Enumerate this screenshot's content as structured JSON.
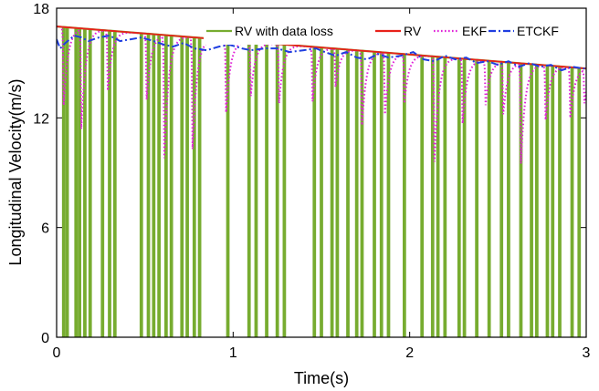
{
  "chart_data": {
    "type": "line",
    "title": "",
    "xlabel": "Time(s)",
    "ylabel": "Longitudinal Velocity(m/s)",
    "xlim": [
      0,
      3
    ],
    "ylim": [
      0,
      18
    ],
    "xticks": [
      0,
      1,
      2,
      3
    ],
    "yticks": [
      0,
      6,
      12,
      18
    ],
    "grid": false,
    "legend_position": "top-right",
    "series": [
      {
        "name": "RV with data loss",
        "color": "#77ac30",
        "style": "solid",
        "description": "RV signal dropping to 0 at loss instants",
        "loss_times": [
          0.04,
          0.06,
          0.11,
          0.13,
          0.16,
          0.19,
          0.26,
          0.3,
          0.33,
          0.48,
          0.52,
          0.55,
          0.58,
          0.62,
          0.65,
          0.71,
          0.74,
          0.78,
          0.81,
          0.97,
          1.09,
          1.13,
          1.19,
          1.25,
          1.29,
          1.46,
          1.5,
          1.56,
          1.59,
          1.65,
          1.7,
          1.73,
          1.8,
          1.84,
          1.88,
          1.97,
          2.07,
          2.13,
          2.16,
          2.2,
          2.28,
          2.31,
          2.38,
          2.45,
          2.52,
          2.56,
          2.63,
          2.69,
          2.72,
          2.78,
          2.81,
          2.85,
          2.92,
          2.96
        ]
      },
      {
        "name": "RV",
        "color": "#e8211a",
        "style": "solid",
        "x": [
          0,
          3
        ],
        "y": [
          17.0,
          14.7
        ]
      },
      {
        "name": "EKF",
        "color": "#e020d8",
        "style": "dotted",
        "description": "EKF estimate sagging during data loss, recovering between losses",
        "dips": [
          {
            "t": 0.04,
            "min": 12.7
          },
          {
            "t": 0.14,
            "min": 11.4
          },
          {
            "t": 0.29,
            "min": 13.5
          },
          {
            "t": 0.51,
            "min": 13.0
          },
          {
            "t": 0.61,
            "min": 9.8
          },
          {
            "t": 0.77,
            "min": 10.3
          },
          {
            "t": 0.96,
            "min": 12.3
          },
          {
            "t": 1.1,
            "min": 13.2
          },
          {
            "t": 1.26,
            "min": 12.8
          },
          {
            "t": 1.45,
            "min": 12.9
          },
          {
            "t": 1.58,
            "min": 13.7
          },
          {
            "t": 1.73,
            "min": 11.6
          },
          {
            "t": 1.86,
            "min": 12.2
          },
          {
            "t": 1.97,
            "min": 12.8
          },
          {
            "t": 2.14,
            "min": 9.6
          },
          {
            "t": 2.3,
            "min": 11.7
          },
          {
            "t": 2.43,
            "min": 12.7
          },
          {
            "t": 2.53,
            "min": 12.2
          },
          {
            "t": 2.63,
            "min": 9.5
          },
          {
            "t": 2.77,
            "min": 11.9
          },
          {
            "t": 2.91,
            "min": 12.0
          },
          {
            "t": 2.99,
            "min": 12.8
          }
        ]
      },
      {
        "name": "ETCKF",
        "color": "#1f3ee0",
        "style": "dashdot",
        "x": [
          0.0,
          0.02,
          0.05,
          0.1,
          0.14,
          0.18,
          0.24,
          0.3,
          0.36,
          0.42,
          0.48,
          0.55,
          0.61,
          0.66,
          0.72,
          0.78,
          0.85,
          0.92,
          0.98,
          1.05,
          1.1,
          1.18,
          1.25,
          1.32,
          1.4,
          1.47,
          1.52,
          1.58,
          1.64,
          1.7,
          1.76,
          1.82,
          1.88,
          1.95,
          2.02,
          2.08,
          2.14,
          2.2,
          2.26,
          2.32,
          2.38,
          2.44,
          2.5,
          2.56,
          2.62,
          2.68,
          2.74,
          2.8,
          2.86,
          2.92,
          2.98,
          3.0
        ],
        "y": [
          16.3,
          15.8,
          16.1,
          16.5,
          16.4,
          16.2,
          16.4,
          16.5,
          16.2,
          16.3,
          16.4,
          16.2,
          16.0,
          15.9,
          16.1,
          15.8,
          15.7,
          15.9,
          16.0,
          15.8,
          15.7,
          15.8,
          15.8,
          15.6,
          15.7,
          15.8,
          15.6,
          15.4,
          15.6,
          15.3,
          15.2,
          15.5,
          15.3,
          15.4,
          15.6,
          15.2,
          15.1,
          15.4,
          15.2,
          15.3,
          15.0,
          15.1,
          14.9,
          15.1,
          14.8,
          15.0,
          14.8,
          14.9,
          14.6,
          14.8,
          14.7,
          14.7
        ]
      }
    ]
  }
}
